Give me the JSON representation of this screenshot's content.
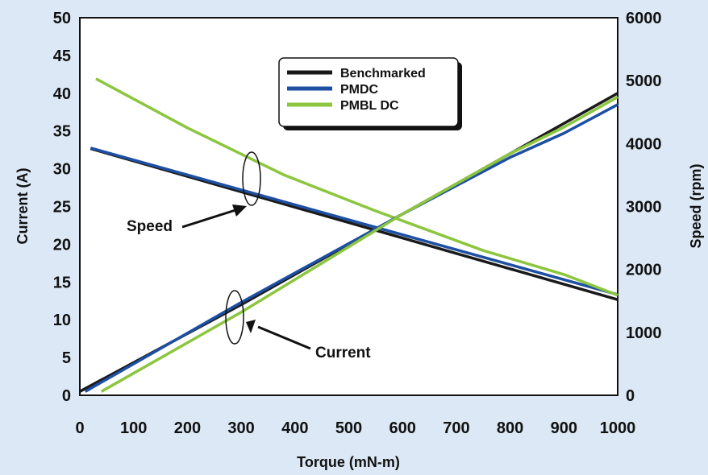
{
  "chart_data": {
    "type": "line",
    "xlabel": "Torque (mN-m)",
    "ylabel_left": "Current (A)",
    "ylabel_right": "Speed (rpm)",
    "x_ticks": [
      "0",
      "100",
      "200",
      "300",
      "400",
      "500",
      "600",
      "700",
      "800",
      "900",
      "1000"
    ],
    "y_left_ticks": [
      "0",
      "5",
      "10",
      "15",
      "20",
      "25",
      "30",
      "35",
      "40",
      "45",
      "50"
    ],
    "y_right_ticks": [
      "0",
      "1000",
      "2000",
      "3000",
      "4000",
      "5000",
      "6000"
    ],
    "xlim": [
      0,
      1000
    ],
    "ylim_left": [
      0,
      50
    ],
    "ylim_right": [
      0,
      6000
    ],
    "grid": false,
    "legend_position": "top-center",
    "legend": [
      "Benchmarked",
      "PMDC",
      "PMBL DC"
    ],
    "annotations": [
      "Speed",
      "Current"
    ],
    "series": [
      {
        "name": "Benchmarked",
        "quantity": "Speed",
        "axis": "right",
        "color": "#1a1a1a",
        "x": [
          20,
          1000
        ],
        "y": [
          3920,
          1520
        ]
      },
      {
        "name": "PMDC",
        "quantity": "Speed",
        "axis": "right",
        "color": "#1d4fa3",
        "x": [
          20,
          1000
        ],
        "y": [
          3930,
          1600
        ]
      },
      {
        "name": "PMBL DC",
        "quantity": "Speed",
        "axis": "right",
        "color": "#8cc63f",
        "x": [
          30,
          200,
          380,
          550,
          750,
          900,
          1000
        ],
        "y": [
          5030,
          4250,
          3500,
          2930,
          2300,
          1920,
          1590
        ]
      },
      {
        "name": "Benchmarked",
        "quantity": "Current",
        "axis": "left",
        "color": "#1a1a1a",
        "x": [
          0,
          300,
          600,
          800,
          1000
        ],
        "y": [
          0.5,
          12,
          24,
          32,
          40
        ]
      },
      {
        "name": "PMDC",
        "quantity": "Current",
        "axis": "left",
        "color": "#1d4fa3",
        "x": [
          10,
          300,
          600,
          800,
          900,
          1000
        ],
        "y": [
          0.5,
          12.3,
          24,
          31.5,
          34.7,
          38.5
        ]
      },
      {
        "name": "PMBL DC",
        "quantity": "Current",
        "axis": "left",
        "color": "#8cc63f",
        "x": [
          40,
          300,
          600,
          800,
          900,
          1000
        ],
        "y": [
          0.5,
          11,
          24,
          32,
          35.5,
          39.5
        ]
      }
    ]
  }
}
